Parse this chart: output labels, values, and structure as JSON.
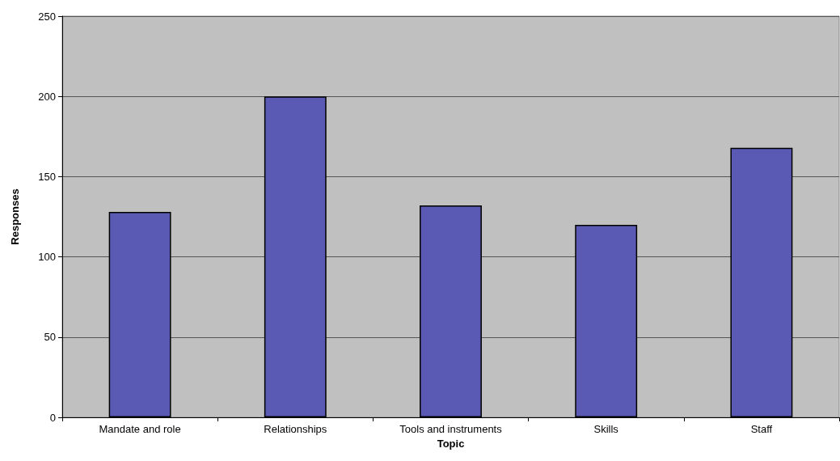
{
  "chart_data": {
    "type": "bar",
    "xlabel": "Topic",
    "ylabel": "Responses",
    "categories": [
      "Mandate and role",
      "Relationships",
      "Tools and instruments",
      "Skills",
      "Staff"
    ],
    "values": [
      128,
      200,
      132,
      120,
      168
    ],
    "color": "#5a5ab4",
    "ylim": [
      0,
      250
    ],
    "yticks": [
      0,
      50,
      100,
      150,
      200,
      250
    ],
    "grid": "y"
  }
}
